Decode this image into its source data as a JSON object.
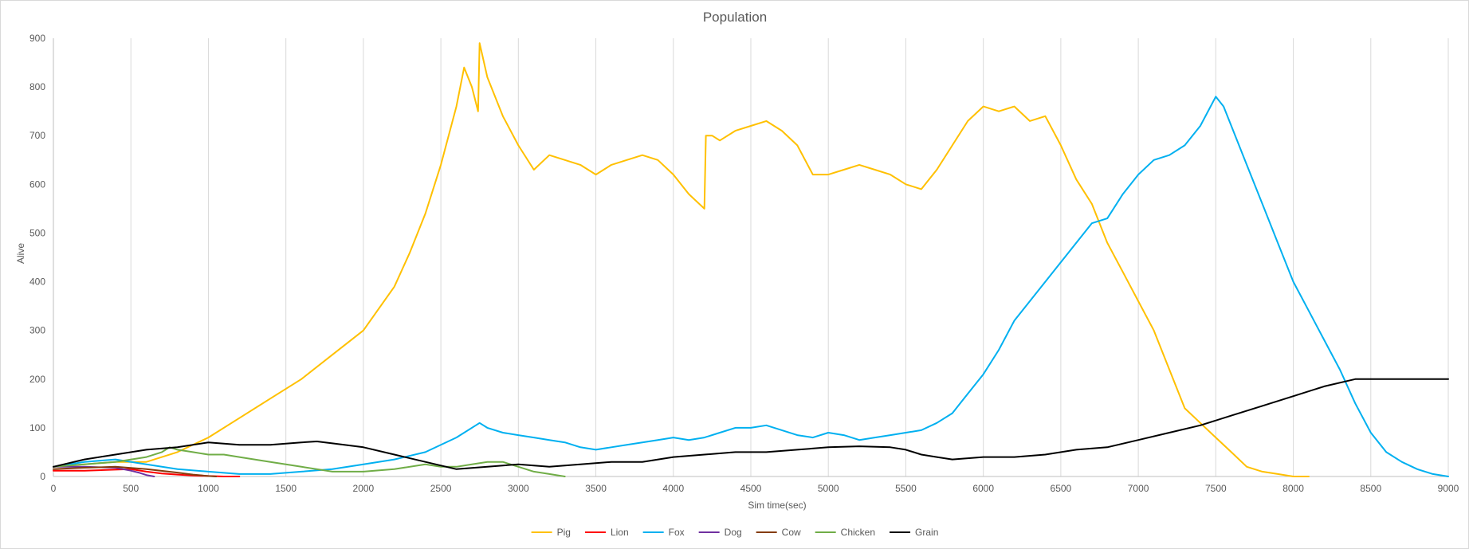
{
  "chart_data": {
    "type": "line",
    "title": "Population",
    "xlabel": "Sim time(sec)",
    "ylabel": "Alive",
    "xlim": [
      0,
      9000
    ],
    "ylim": [
      0,
      900
    ],
    "xticks": [
      0,
      500,
      1000,
      1500,
      2000,
      2500,
      3000,
      3500,
      4000,
      4500,
      5000,
      5500,
      6000,
      6500,
      7000,
      7500,
      8000,
      8500,
      9000
    ],
    "yticks": [
      0,
      100,
      200,
      300,
      400,
      500,
      600,
      700,
      800,
      900
    ],
    "grid": "vertical",
    "legend": "bottom",
    "series": [
      {
        "name": "Pig",
        "color": "#ffc000",
        "x": [
          0,
          200,
          400,
          600,
          800,
          1000,
          1200,
          1400,
          1600,
          1800,
          2000,
          2200,
          2300,
          2400,
          2500,
          2600,
          2650,
          2700,
          2740,
          2750,
          2800,
          2900,
          3000,
          3100,
          3200,
          3300,
          3400,
          3500,
          3600,
          3700,
          3800,
          3900,
          4000,
          4100,
          4200,
          4210,
          4250,
          4300,
          4400,
          4500,
          4600,
          4700,
          4800,
          4900,
          5000,
          5100,
          5200,
          5300,
          5400,
          5500,
          5600,
          5700,
          5800,
          5900,
          6000,
          6100,
          6200,
          6300,
          6400,
          6500,
          6600,
          6700,
          6800,
          6900,
          7000,
          7100,
          7200,
          7300,
          7400,
          7500,
          7600,
          7700,
          7800,
          7900,
          8000,
          8100
        ],
        "y": [
          20,
          25,
          30,
          30,
          50,
          80,
          120,
          160,
          200,
          250,
          300,
          390,
          460,
          540,
          640,
          760,
          840,
          800,
          750,
          890,
          820,
          740,
          680,
          630,
          660,
          650,
          640,
          620,
          640,
          650,
          660,
          650,
          620,
          580,
          550,
          700,
          700,
          690,
          710,
          720,
          730,
          710,
          680,
          620,
          620,
          630,
          640,
          630,
          620,
          600,
          590,
          630,
          680,
          730,
          760,
          750,
          760,
          730,
          740,
          680,
          610,
          560,
          480,
          420,
          360,
          300,
          220,
          140,
          110,
          80,
          50,
          20,
          10,
          5,
          0,
          0
        ]
      },
      {
        "name": "Lion",
        "color": "#ff0000",
        "x": [
          0,
          200,
          400,
          500,
          600,
          700,
          800,
          900,
          1000,
          1100,
          1200
        ],
        "y": [
          12,
          12,
          14,
          15,
          10,
          6,
          4,
          2,
          1,
          0,
          0
        ]
      },
      {
        "name": "Fox",
        "color": "#00b0f0",
        "x": [
          0,
          200,
          400,
          600,
          800,
          1000,
          1200,
          1400,
          1600,
          1800,
          2000,
          2200,
          2400,
          2600,
          2750,
          2800,
          2900,
          3000,
          3100,
          3200,
          3300,
          3400,
          3500,
          3600,
          3700,
          3800,
          3900,
          4000,
          4100,
          4200,
          4300,
          4400,
          4500,
          4600,
          4700,
          4800,
          4900,
          5000,
          5100,
          5200,
          5300,
          5400,
          5500,
          5600,
          5700,
          5800,
          5900,
          6000,
          6100,
          6200,
          6300,
          6400,
          6500,
          6600,
          6700,
          6800,
          6900,
          7000,
          7100,
          7200,
          7300,
          7400,
          7500,
          7550,
          7600,
          7700,
          7800,
          7900,
          8000,
          8100,
          8200,
          8300,
          8400,
          8500,
          8600,
          8700,
          8800,
          8900,
          9000
        ],
        "y": [
          20,
          30,
          35,
          25,
          15,
          10,
          5,
          5,
          10,
          15,
          25,
          35,
          50,
          80,
          110,
          100,
          90,
          85,
          80,
          75,
          70,
          60,
          55,
          60,
          65,
          70,
          75,
          80,
          75,
          80,
          90,
          100,
          100,
          105,
          95,
          85,
          80,
          90,
          85,
          75,
          80,
          85,
          90,
          95,
          110,
          130,
          170,
          210,
          260,
          320,
          360,
          400,
          440,
          480,
          520,
          530,
          580,
          620,
          650,
          660,
          680,
          720,
          780,
          760,
          720,
          640,
          560,
          480,
          400,
          340,
          280,
          220,
          150,
          90,
          50,
          30,
          15,
          5,
          0
        ]
      },
      {
        "name": "Dog",
        "color": "#7030a0",
        "x": [
          0,
          200,
          400,
          500,
          550,
          600,
          650
        ],
        "y": [
          20,
          20,
          18,
          12,
          8,
          3,
          0
        ]
      },
      {
        "name": "Cow",
        "color": "#843c0c",
        "x": [
          0,
          200,
          400,
          600,
          800,
          900,
          1000,
          1050
        ],
        "y": [
          15,
          18,
          20,
          15,
          8,
          4,
          1,
          0
        ]
      },
      {
        "name": "Chicken",
        "color": "#70ad47",
        "x": [
          0,
          200,
          400,
          600,
          700,
          750,
          800,
          900,
          1000,
          1100,
          1200,
          1400,
          1600,
          1800,
          2000,
          2200,
          2400,
          2500,
          2600,
          2700,
          2800,
          2900,
          3000,
          3100,
          3200,
          3300
        ],
        "y": [
          20,
          25,
          30,
          40,
          50,
          60,
          55,
          50,
          45,
          45,
          40,
          30,
          20,
          10,
          10,
          15,
          25,
          20,
          20,
          25,
          30,
          30,
          20,
          10,
          5,
          0
        ]
      },
      {
        "name": "Grain",
        "color": "#000000",
        "x": [
          0,
          200,
          400,
          600,
          800,
          1000,
          1200,
          1400,
          1600,
          1700,
          1800,
          2000,
          2200,
          2400,
          2600,
          2800,
          3000,
          3200,
          3400,
          3600,
          3800,
          4000,
          4200,
          4400,
          4600,
          4800,
          5000,
          5200,
          5400,
          5500,
          5600,
          5700,
          5800,
          6000,
          6200,
          6400,
          6600,
          6800,
          7000,
          7200,
          7400,
          7600,
          7800,
          8000,
          8200,
          8400,
          8600,
          8800,
          9000
        ],
        "y": [
          20,
          35,
          45,
          55,
          60,
          70,
          65,
          65,
          70,
          72,
          68,
          60,
          45,
          30,
          15,
          20,
          25,
          20,
          25,
          30,
          30,
          40,
          45,
          50,
          50,
          55,
          60,
          62,
          60,
          55,
          45,
          40,
          35,
          40,
          40,
          45,
          55,
          60,
          75,
          90,
          105,
          125,
          145,
          165,
          185,
          200,
          200,
          200,
          200
        ]
      }
    ]
  }
}
